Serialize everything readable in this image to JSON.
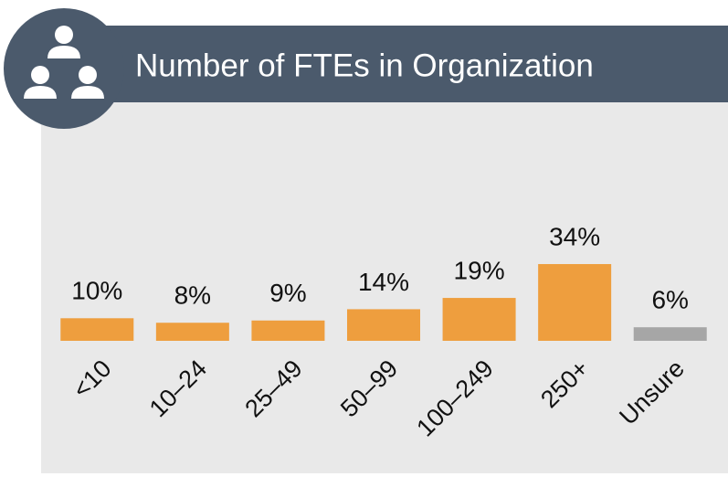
{
  "chart_data": {
    "type": "bar",
    "title": "Number of FTEs in Organization",
    "categories": [
      "<10",
      "10–24",
      "25–49",
      "50–99",
      "100–249",
      "250+",
      "Unsure"
    ],
    "values": [
      10,
      8,
      9,
      14,
      19,
      34,
      6
    ],
    "value_labels": [
      "10%",
      "8%",
      "9%",
      "14%",
      "19%",
      "34%",
      "6%"
    ],
    "colors": [
      "#ee9e3e",
      "#ee9e3e",
      "#ee9e3e",
      "#ee9e3e",
      "#ee9e3e",
      "#ee9e3e",
      "#a6a6a6"
    ],
    "ylim": [
      0,
      100
    ]
  }
}
